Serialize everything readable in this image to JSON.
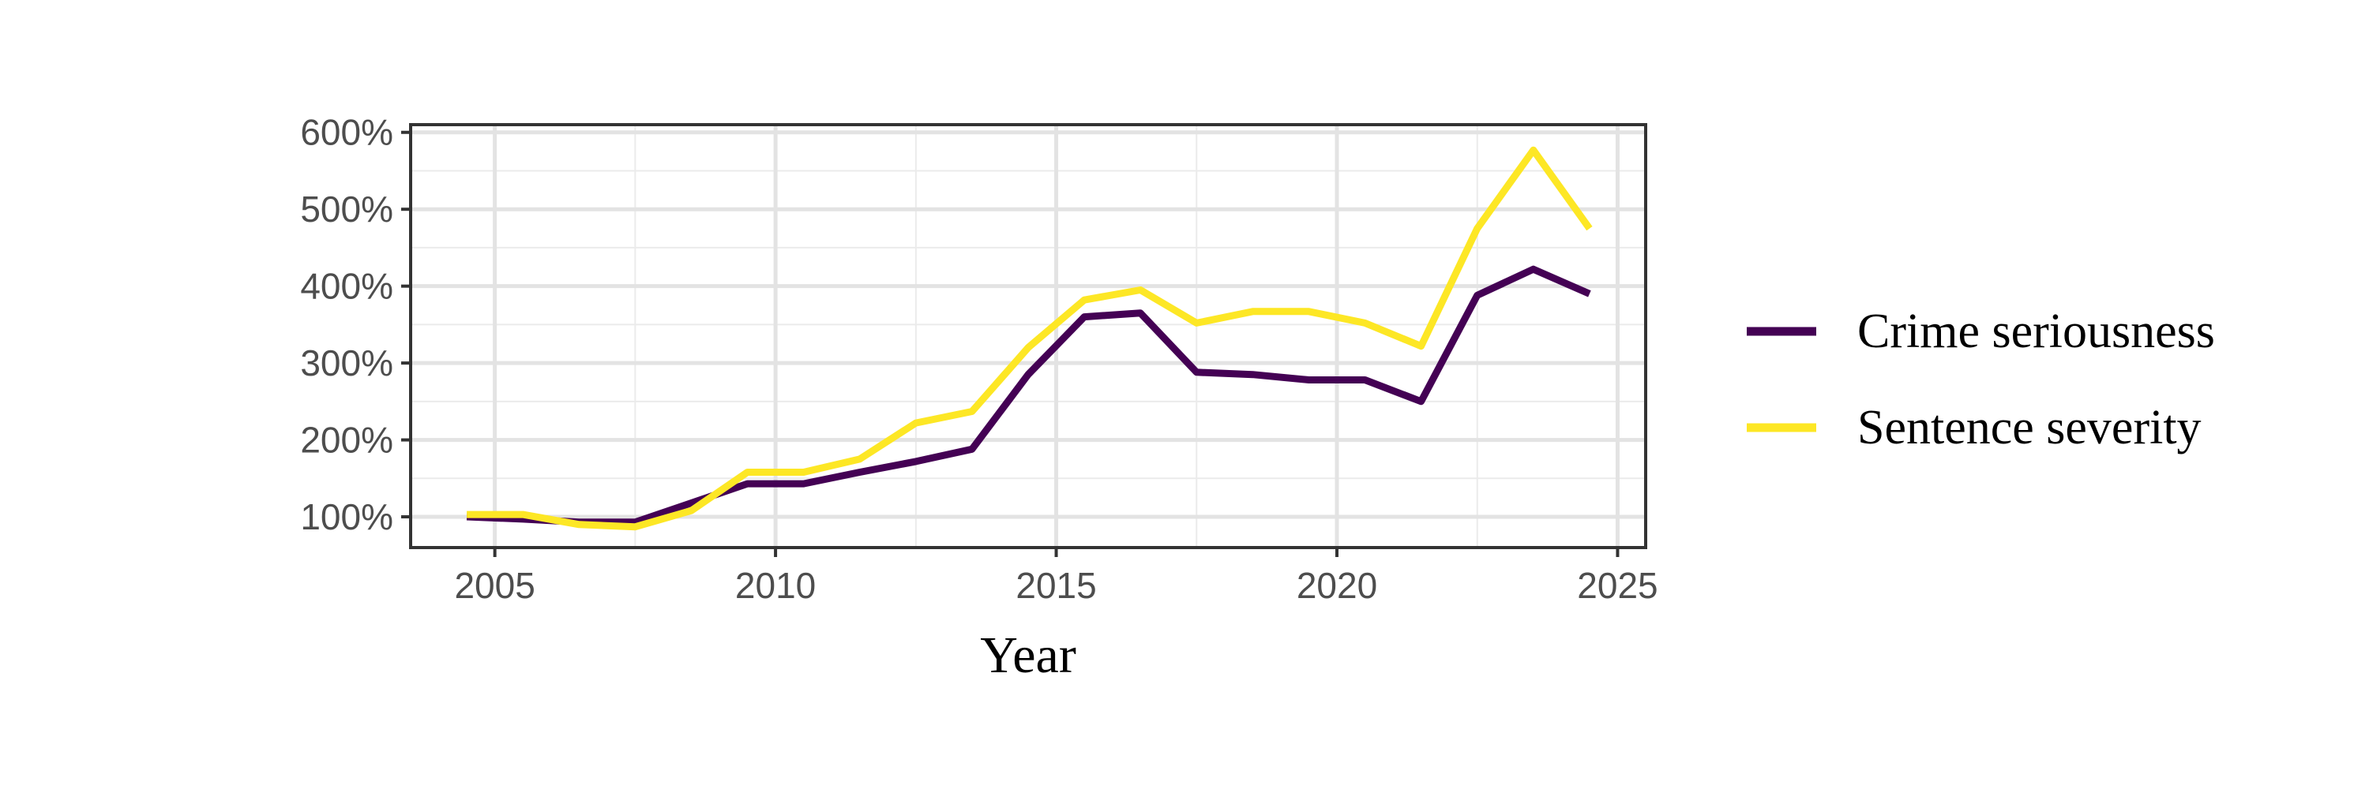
{
  "chart_data": {
    "type": "line",
    "title": "",
    "xlabel": "Year",
    "ylabel": "",
    "xlim": [
      2003.5,
      2025.5
    ],
    "ylim": [
      60,
      610
    ],
    "x_ticks": [
      2005,
      2010,
      2015,
      2020,
      2025
    ],
    "x_tick_labels": [
      "2005",
      "2010",
      "2015",
      "2020",
      "2025"
    ],
    "y_ticks": [
      100,
      200,
      300,
      400,
      500,
      600
    ],
    "y_tick_labels": [
      "100%",
      "200%",
      "300%",
      "400%",
      "500%",
      "600%"
    ],
    "grid": true,
    "legend_position": "right",
    "x": [
      2004.5,
      2005.5,
      2006.5,
      2007.5,
      2008.5,
      2009.5,
      2010.5,
      2011.5,
      2012.5,
      2013.5,
      2014.5,
      2015.5,
      2016.5,
      2017.5,
      2018.5,
      2019.5,
      2020.5,
      2021.5,
      2022.5,
      2023.5,
      2024.5
    ],
    "series": [
      {
        "name": "Crime seriousness",
        "color": "#440154",
        "values": [
          100,
          97,
          93,
          93,
          118,
          143,
          143,
          158,
          172,
          188,
          285,
          360,
          365,
          288,
          285,
          278,
          278,
          250,
          388,
          422,
          390
        ]
      },
      {
        "name": "Sentence severity",
        "color": "#FDE725",
        "values": [
          103,
          103,
          90,
          87,
          108,
          158,
          158,
          175,
          222,
          237,
          320,
          382,
          395,
          352,
          367,
          367,
          352,
          322,
          475,
          577,
          475
        ]
      }
    ]
  }
}
